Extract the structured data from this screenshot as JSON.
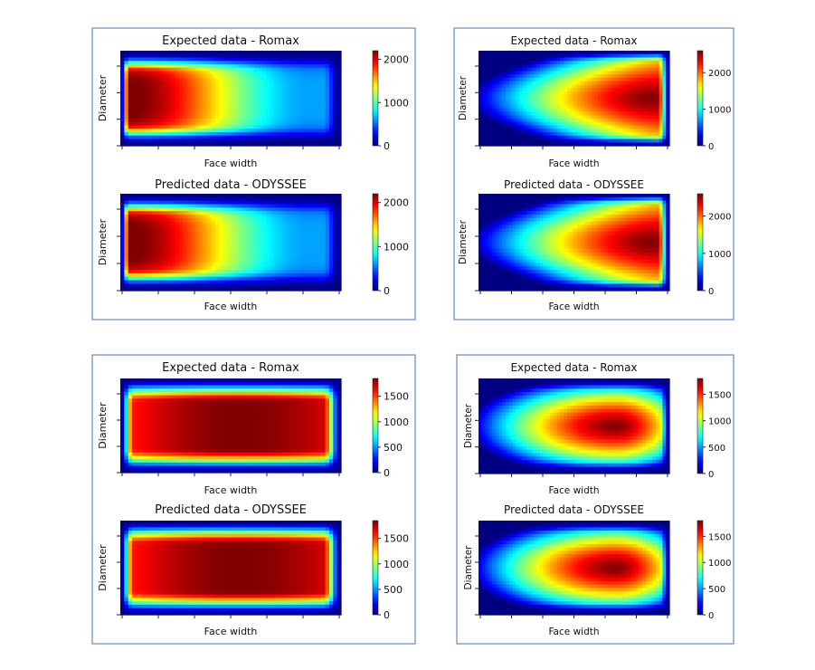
{
  "panels": [
    {
      "frame_color": "#4472c4",
      "charts": [
        {
          "type": "heatmap",
          "title": "Expected data - Romax",
          "xlabel": "Face width",
          "ylabel": "Diameter",
          "colormap": "jet",
          "vmin": 0,
          "vmax": 2200,
          "colorbar_ticks": [
            0,
            1000,
            2000
          ],
          "peak_position": 0.08,
          "peak_value": 2200,
          "pattern": "decreasing_from_left"
        },
        {
          "type": "heatmap",
          "title": "Predicted data - ODYSSEE",
          "xlabel": "Face width",
          "ylabel": "Diameter",
          "colormap": "jet",
          "vmin": 0,
          "vmax": 2200,
          "colorbar_ticks": [
            0,
            1000,
            2000
          ],
          "peak_position": 0.08,
          "peak_value": 2200,
          "pattern": "decreasing_from_left"
        }
      ]
    },
    {
      "frame_color": "#4472c4",
      "charts": [
        {
          "type": "heatmap",
          "title": "Expected data - Romax",
          "xlabel": "Face width",
          "ylabel": "Diameter",
          "colormap": "jet",
          "vmin": 0,
          "vmax": 2600,
          "colorbar_ticks": [
            0,
            1000,
            2000
          ],
          "peak_position": 0.88,
          "peak_value": 2600,
          "pattern": "increasing_to_right"
        },
        {
          "type": "heatmap",
          "title": "Predicted data - ODYSSEE",
          "xlabel": "Face width",
          "ylabel": "Diameter",
          "colormap": "jet",
          "vmin": 0,
          "vmax": 2600,
          "colorbar_ticks": [
            0,
            1000,
            2000
          ],
          "peak_position": 0.88,
          "peak_value": 2600,
          "pattern": "increasing_to_right"
        }
      ]
    },
    {
      "frame_color": "#4472c4",
      "charts": [
        {
          "type": "heatmap",
          "title": "Expected data - Romax",
          "xlabel": "Face width",
          "ylabel": "Diameter",
          "colormap": "jet",
          "vmin": 0,
          "vmax": 1850,
          "colorbar_ticks": [
            0,
            500,
            1000,
            1500
          ],
          "peak_position": 0.55,
          "peak_value": 1850,
          "pattern": "centered"
        },
        {
          "type": "heatmap",
          "title": "Predicted data - ODYSSEE",
          "xlabel": "Face width",
          "ylabel": "Diameter",
          "colormap": "jet",
          "vmin": 0,
          "vmax": 1850,
          "colorbar_ticks": [
            0,
            500,
            1000,
            1500
          ],
          "peak_position": 0.55,
          "peak_value": 1850,
          "pattern": "centered"
        }
      ]
    },
    {
      "frame_color": "#4472c4",
      "charts": [
        {
          "type": "heatmap",
          "title": "Expected data - Romax",
          "xlabel": "Face width",
          "ylabel": "Diameter",
          "colormap": "jet",
          "vmin": 0,
          "vmax": 1800,
          "colorbar_ticks": [
            0,
            500,
            1000,
            1500
          ],
          "peak_position": 0.72,
          "peak_value": 1800,
          "pattern": "right_of_center"
        },
        {
          "type": "heatmap",
          "title": "Predicted data - ODYSSEE",
          "xlabel": "Face width",
          "ylabel": "Diameter",
          "colormap": "jet",
          "vmin": 0,
          "vmax": 1800,
          "colorbar_ticks": [
            0,
            500,
            1000,
            1500
          ],
          "peak_position": 0.72,
          "peak_value": 1800,
          "pattern": "right_of_center"
        }
      ]
    }
  ]
}
